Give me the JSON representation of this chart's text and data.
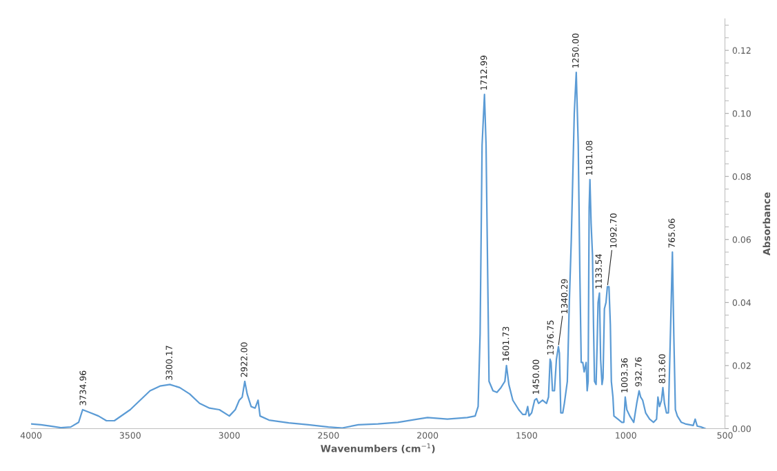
{
  "chart_data": {
    "type": "line",
    "xlabel": "Wavenumbers (cm$^{−1}$)",
    "ylabel": "Absorbance",
    "xlim": [
      4000,
      500
    ],
    "xticks": [
      4000,
      3500,
      3000,
      2500,
      2000,
      1500,
      1000,
      500
    ],
    "ylim": [
      0,
      0.13
    ],
    "yticks": [
      {
        "value": 0,
        "label": "0.00"
      },
      {
        "value": 0.02,
        "label": "0.02"
      },
      {
        "value": 0.04,
        "label": "0.04"
      },
      {
        "value": 0.06,
        "label": "0.06"
      },
      {
        "value": 0.08,
        "label": "0.08"
      },
      {
        "value": 0.1,
        "label": "0.10"
      },
      {
        "value": 0.12,
        "label": "0.12"
      }
    ],
    "grid": false,
    "legend": false,
    "marker": "none",
    "line_style": "solid",
    "x": [
      4000,
      3950,
      3900,
      3850,
      3800,
      3760,
      3740,
      3700,
      3660,
      3620,
      3580,
      3500,
      3450,
      3400,
      3350,
      3300,
      3250,
      3200,
      3150,
      3100,
      3050,
      3000,
      2970,
      2950,
      2935,
      2922,
      2910,
      2890,
      2870,
      2855,
      2845,
      2800,
      2700,
      2600,
      2500,
      2430,
      2350,
      2250,
      2150,
      2050,
      2000,
      1900,
      1800,
      1760,
      1745,
      1735,
      1725,
      1713,
      1705,
      1695,
      1690,
      1670,
      1650,
      1630,
      1610,
      1602,
      1590,
      1570,
      1540,
      1520,
      1505,
      1495,
      1488,
      1475,
      1460,
      1450,
      1440,
      1420,
      1400,
      1390,
      1382,
      1377,
      1370,
      1360,
      1350,
      1340,
      1335,
      1328,
      1318,
      1310,
      1295,
      1285,
      1275,
      1260,
      1250,
      1240,
      1232,
      1225,
      1217,
      1210,
      1200,
      1195,
      1190,
      1185,
      1181,
      1175,
      1168,
      1163,
      1158,
      1150,
      1145,
      1140,
      1133,
      1127,
      1120,
      1115,
      1108,
      1100,
      1093,
      1085,
      1078,
      1073,
      1065,
      1060,
      1040,
      1020,
      1010,
      1003,
      995,
      980,
      960,
      945,
      933,
      925,
      915,
      900,
      880,
      860,
      845,
      838,
      830,
      820,
      813,
      805,
      795,
      785,
      775,
      765,
      758,
      750,
      740,
      720,
      700,
      660,
      650,
      640,
      620,
      600
    ],
    "series": [
      {
        "color": "#5b9bd5",
        "values": [
          0.0015,
          0.0012,
          0.0008,
          0.0003,
          0.0005,
          0.002,
          0.006,
          0.005,
          0.004,
          0.0025,
          0.0025,
          0.006,
          0.009,
          0.012,
          0.0135,
          0.014,
          0.013,
          0.011,
          0.008,
          0.0065,
          0.006,
          0.004,
          0.006,
          0.009,
          0.01,
          0.015,
          0.011,
          0.007,
          0.0065,
          0.009,
          0.004,
          0.0027,
          0.0018,
          0.0012,
          0.0005,
          0.0002,
          0.0012,
          0.0015,
          0.002,
          0.003,
          0.0035,
          0.003,
          0.0035,
          0.004,
          0.007,
          0.03,
          0.09,
          0.106,
          0.09,
          0.04,
          0.015,
          0.012,
          0.0115,
          0.013,
          0.015,
          0.02,
          0.014,
          0.009,
          0.006,
          0.0045,
          0.0045,
          0.007,
          0.004,
          0.005,
          0.009,
          0.0095,
          0.008,
          0.009,
          0.008,
          0.01,
          0.022,
          0.021,
          0.012,
          0.012,
          0.022,
          0.026,
          0.024,
          0.005,
          0.005,
          0.008,
          0.015,
          0.04,
          0.06,
          0.1,
          0.113,
          0.09,
          0.05,
          0.021,
          0.021,
          0.018,
          0.021,
          0.012,
          0.015,
          0.07,
          0.079,
          0.065,
          0.055,
          0.033,
          0.015,
          0.014,
          0.026,
          0.04,
          0.043,
          0.022,
          0.014,
          0.016,
          0.038,
          0.04,
          0.045,
          0.045,
          0.033,
          0.015,
          0.01,
          0.004,
          0.003,
          0.002,
          0.002,
          0.01,
          0.006,
          0.004,
          0.002,
          0.008,
          0.012,
          0.01,
          0.009,
          0.005,
          0.003,
          0.002,
          0.003,
          0.01,
          0.007,
          0.009,
          0.013,
          0.008,
          0.005,
          0.005,
          0.03,
          0.056,
          0.03,
          0.006,
          0.004,
          0.002,
          0.0015,
          0.001,
          0.003,
          0.0008,
          0.0005,
          0.0
        ]
      }
    ],
    "annotations": [
      {
        "text": "3734.96",
        "x": 3734.96,
        "y": 0.006
      },
      {
        "text": "3300.17",
        "x": 3300.17,
        "y": 0.014
      },
      {
        "text": "2922.00",
        "x": 2922.0,
        "y": 0.015
      },
      {
        "text": "1712.99",
        "x": 1712.99,
        "y": 0.106
      },
      {
        "text": "1601.73",
        "x": 1601.73,
        "y": 0.02
      },
      {
        "text": "1450.00",
        "x": 1450.0,
        "y": 0.0095
      },
      {
        "text": "1376.75",
        "x": 1376.75,
        "y": 0.022
      },
      {
        "text": "1340.29",
        "x": 1340.29,
        "y": 0.026
      },
      {
        "text": "1250.00",
        "x": 1250.0,
        "y": 0.113
      },
      {
        "text": "1181.08",
        "x": 1181.08,
        "y": 0.079
      },
      {
        "text": "1133.54",
        "x": 1133.54,
        "y": 0.043
      },
      {
        "text": "1092.70",
        "x": 1092.7,
        "y": 0.045
      },
      {
        "text": "1003.36",
        "x": 1003.36,
        "y": 0.01
      },
      {
        "text": "932.76",
        "x": 932.76,
        "y": 0.012
      },
      {
        "text": "813.60",
        "x": 813.6,
        "y": 0.013
      },
      {
        "text": "765.06",
        "x": 765.06,
        "y": 0.056
      }
    ]
  }
}
